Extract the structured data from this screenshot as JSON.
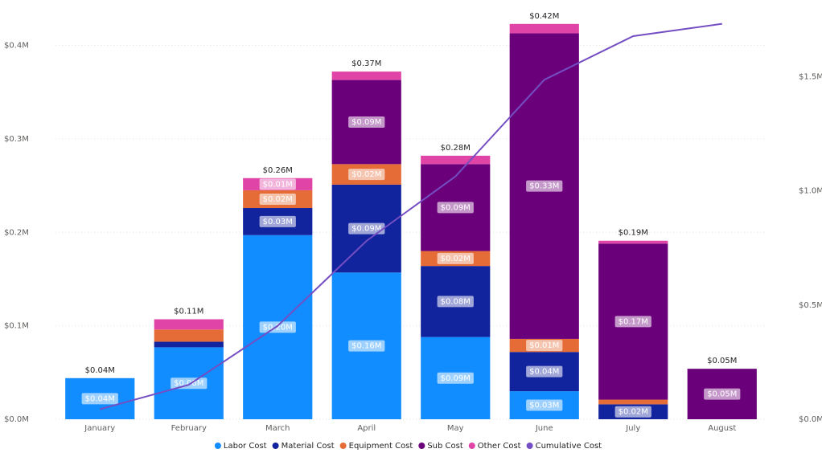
{
  "chart_data": {
    "type": "bar",
    "categories": [
      "January",
      "February",
      "March",
      "April",
      "May",
      "June",
      "July",
      "August"
    ],
    "series": [
      {
        "name": "Labor Cost",
        "color": "#118DFF",
        "values": [
          0.044,
          0.077,
          0.197,
          0.157,
          0.088,
          0.03,
          0,
          0
        ],
        "value_labels": [
          "$0.04M",
          "$0.08M",
          "$0.20M",
          "$0.16M",
          "$0.09M",
          "$0.03M",
          null,
          null
        ]
      },
      {
        "name": "Material Cost",
        "color": "#12239E",
        "values": [
          0,
          0.006,
          0.029,
          0.094,
          0.076,
          0.042,
          0.016,
          0
        ],
        "value_labels": [
          null,
          null,
          "$0.03M",
          "$0.09M",
          "$0.08M",
          "$0.04M",
          "$0.02M",
          null
        ]
      },
      {
        "name": "Equipment Cost",
        "color": "#E66C37",
        "values": [
          0,
          0.013,
          0.019,
          0.022,
          0.016,
          0.014,
          0.005,
          0
        ],
        "value_labels": [
          null,
          null,
          "$0.02M",
          "$0.02M",
          "$0.02M",
          "$0.01M",
          null,
          null
        ]
      },
      {
        "name": "Sub Cost",
        "color": "#6B007B",
        "values": [
          0,
          0,
          0,
          0.09,
          0.093,
          0.327,
          0.167,
          0.054
        ],
        "value_labels": [
          null,
          null,
          null,
          "$0.09M",
          "$0.09M",
          "$0.33M",
          "$0.17M",
          "$0.05M"
        ]
      },
      {
        "name": "Other Cost",
        "color": "#E044A7",
        "values": [
          0,
          0.011,
          0.013,
          0.009,
          0.009,
          0.01,
          0.003,
          0
        ],
        "value_labels": [
          null,
          null,
          "$0.01M",
          null,
          null,
          null,
          null,
          null
        ]
      },
      {
        "name": "Cumulative Cost",
        "color": "#744EC2",
        "type": "line",
        "axis": "y2",
        "values": [
          0.044,
          0.151,
          0.409,
          0.781,
          1.063,
          1.486,
          1.677,
          1.731
        ]
      }
    ],
    "totals": [
      0.044,
      0.107,
      0.258,
      0.372,
      0.282,
      0.423,
      0.191,
      0.054
    ],
    "total_labels": [
      "$0.04M",
      "$0.11M",
      "$0.26M",
      "$0.37M",
      "$0.28M",
      "$0.42M",
      "$0.19M",
      "$0.05M"
    ],
    "ylim": [
      0,
      0.44
    ],
    "yticks": [
      {
        "value": 0,
        "label": "$0.0M"
      },
      {
        "value": 0.1,
        "label": "$0.1M"
      },
      {
        "value": 0.2,
        "label": "$0.2M"
      },
      {
        "value": 0.3,
        "label": "$0.3M"
      },
      {
        "value": 0.4,
        "label": "$0.4M"
      }
    ],
    "y2lim": [
      0,
      1.8
    ],
    "y2ticks": [
      {
        "value": 0,
        "label": "$0.0M"
      },
      {
        "value": 0.5,
        "label": "$0.5M"
      },
      {
        "value": 1.0,
        "label": "$1.0M"
      },
      {
        "value": 1.5,
        "label": "$1.5M"
      }
    ],
    "grid": true,
    "legend": "bottom"
  }
}
